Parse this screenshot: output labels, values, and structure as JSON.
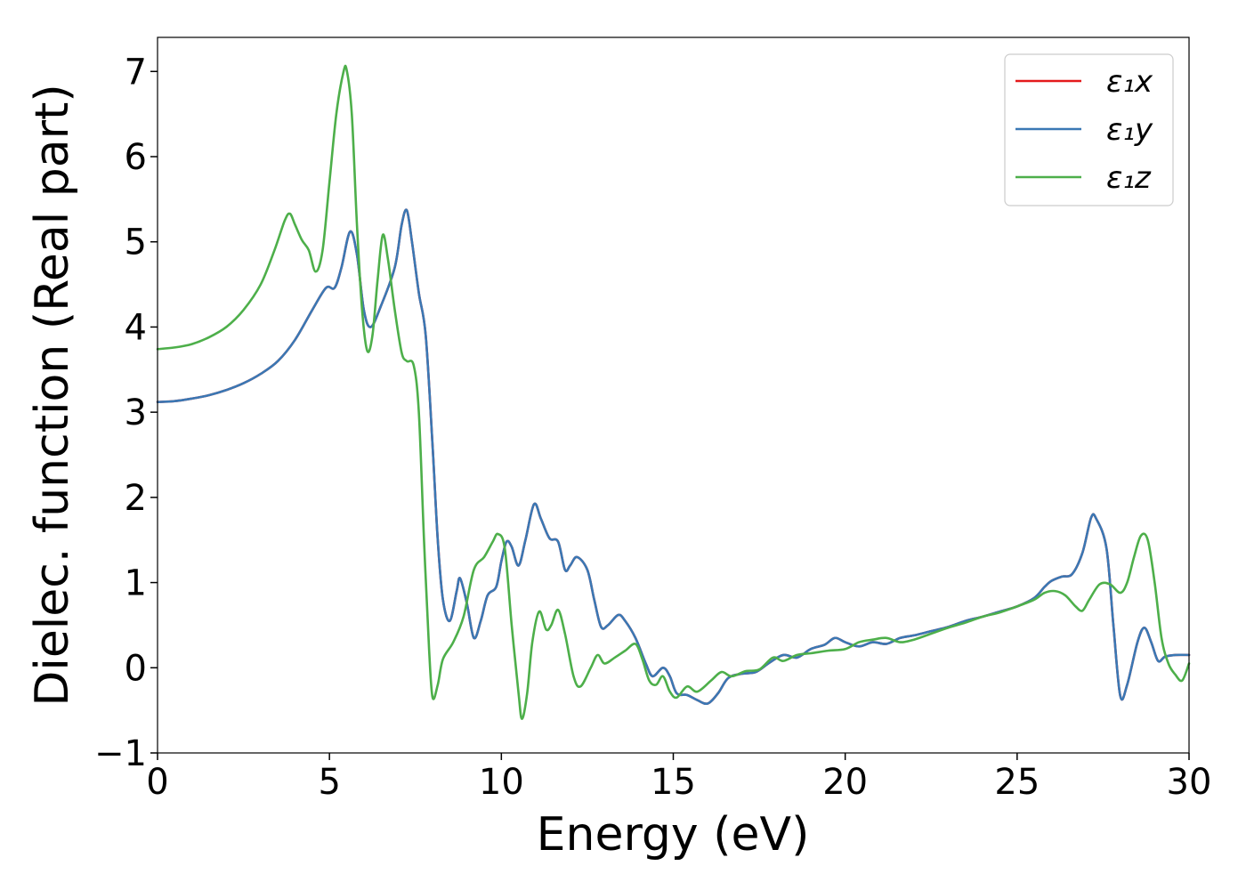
{
  "chart_data": {
    "type": "line",
    "title": "",
    "xlabel": "Energy (eV)",
    "ylabel": "Dielec. function (Real part)",
    "xlim": [
      0,
      30
    ],
    "ylim": [
      -1,
      7.4
    ],
    "xticks": [
      0,
      5,
      10,
      15,
      20,
      25,
      30
    ],
    "yticks": [
      -1,
      0,
      1,
      2,
      3,
      4,
      5,
      6,
      7
    ],
    "xtick_labels": [
      "0",
      "5",
      "10",
      "15",
      "20",
      "25",
      "30"
    ],
    "ytick_labels": [
      "−1",
      "0",
      "1",
      "2",
      "3",
      "4",
      "5",
      "6",
      "7"
    ],
    "grid": false,
    "legend_position": "top-right",
    "series": [
      {
        "name": "ε₁x",
        "color": "#e41a1c",
        "points": [
          [
            0,
            3.12
          ],
          [
            0.5,
            3.13
          ],
          [
            1,
            3.16
          ],
          [
            1.5,
            3.2
          ],
          [
            2,
            3.26
          ],
          [
            2.5,
            3.34
          ],
          [
            3,
            3.45
          ],
          [
            3.5,
            3.6
          ],
          [
            4,
            3.85
          ],
          [
            4.5,
            4.2
          ],
          [
            4.9,
            4.46
          ],
          [
            5.15,
            4.46
          ],
          [
            5.35,
            4.7
          ],
          [
            5.6,
            5.12
          ],
          [
            5.8,
            4.85
          ],
          [
            6,
            4.2
          ],
          [
            6.2,
            4.0
          ],
          [
            6.5,
            4.25
          ],
          [
            6.9,
            4.7
          ],
          [
            7.1,
            5.2
          ],
          [
            7.25,
            5.37
          ],
          [
            7.4,
            5.0
          ],
          [
            7.6,
            4.4
          ],
          [
            7.8,
            3.9
          ],
          [
            8,
            2.6
          ],
          [
            8.15,
            1.5
          ],
          [
            8.3,
            0.8
          ],
          [
            8.5,
            0.55
          ],
          [
            8.7,
            0.9
          ],
          [
            8.8,
            1.05
          ],
          [
            9,
            0.75
          ],
          [
            9.2,
            0.35
          ],
          [
            9.4,
            0.55
          ],
          [
            9.6,
            0.85
          ],
          [
            9.85,
            0.95
          ],
          [
            10,
            1.25
          ],
          [
            10.15,
            1.48
          ],
          [
            10.3,
            1.42
          ],
          [
            10.5,
            1.2
          ],
          [
            10.7,
            1.5
          ],
          [
            10.95,
            1.92
          ],
          [
            11.15,
            1.75
          ],
          [
            11.4,
            1.52
          ],
          [
            11.65,
            1.48
          ],
          [
            11.85,
            1.15
          ],
          [
            12,
            1.2
          ],
          [
            12.2,
            1.3
          ],
          [
            12.5,
            1.15
          ],
          [
            12.7,
            0.8
          ],
          [
            12.9,
            0.48
          ],
          [
            13.1,
            0.5
          ],
          [
            13.4,
            0.62
          ],
          [
            13.6,
            0.55
          ],
          [
            13.9,
            0.35
          ],
          [
            14.2,
            0.05
          ],
          [
            14.4,
            -0.1
          ],
          [
            14.7,
            0.0
          ],
          [
            14.9,
            -0.1
          ],
          [
            15.1,
            -0.3
          ],
          [
            15.4,
            -0.32
          ],
          [
            15.7,
            -0.38
          ],
          [
            16,
            -0.42
          ],
          [
            16.3,
            -0.3
          ],
          [
            16.6,
            -0.12
          ],
          [
            17,
            -0.07
          ],
          [
            17.4,
            -0.05
          ],
          [
            17.8,
            0.06
          ],
          [
            18.2,
            0.15
          ],
          [
            18.6,
            0.12
          ],
          [
            19,
            0.22
          ],
          [
            19.4,
            0.27
          ],
          [
            19.7,
            0.35
          ],
          [
            20,
            0.3
          ],
          [
            20.4,
            0.25
          ],
          [
            20.8,
            0.3
          ],
          [
            21.2,
            0.28
          ],
          [
            21.6,
            0.35
          ],
          [
            22,
            0.38
          ],
          [
            22.5,
            0.43
          ],
          [
            23,
            0.48
          ],
          [
            23.5,
            0.55
          ],
          [
            24,
            0.6
          ],
          [
            24.5,
            0.66
          ],
          [
            25,
            0.72
          ],
          [
            25.5,
            0.82
          ],
          [
            25.8,
            0.95
          ],
          [
            26,
            1.02
          ],
          [
            26.3,
            1.07
          ],
          [
            26.6,
            1.1
          ],
          [
            26.9,
            1.35
          ],
          [
            27.15,
            1.76
          ],
          [
            27.3,
            1.75
          ],
          [
            27.6,
            1.4
          ],
          [
            27.8,
            0.5
          ],
          [
            28,
            -0.33
          ],
          [
            28.2,
            -0.2
          ],
          [
            28.5,
            0.3
          ],
          [
            28.7,
            0.47
          ],
          [
            28.9,
            0.3
          ],
          [
            29.1,
            0.08
          ],
          [
            29.3,
            0.13
          ],
          [
            29.6,
            0.15
          ],
          [
            30,
            0.15
          ]
        ]
      },
      {
        "name": "ε₁y",
        "color": "#3a78b4",
        "points": [
          [
            0,
            3.12
          ],
          [
            0.5,
            3.13
          ],
          [
            1,
            3.16
          ],
          [
            1.5,
            3.2
          ],
          [
            2,
            3.26
          ],
          [
            2.5,
            3.34
          ],
          [
            3,
            3.45
          ],
          [
            3.5,
            3.6
          ],
          [
            4,
            3.85
          ],
          [
            4.5,
            4.2
          ],
          [
            4.9,
            4.46
          ],
          [
            5.15,
            4.46
          ],
          [
            5.35,
            4.7
          ],
          [
            5.6,
            5.12
          ],
          [
            5.8,
            4.85
          ],
          [
            6,
            4.2
          ],
          [
            6.2,
            4.0
          ],
          [
            6.5,
            4.25
          ],
          [
            6.9,
            4.7
          ],
          [
            7.1,
            5.2
          ],
          [
            7.25,
            5.37
          ],
          [
            7.4,
            5.0
          ],
          [
            7.6,
            4.4
          ],
          [
            7.8,
            3.9
          ],
          [
            8,
            2.6
          ],
          [
            8.15,
            1.5
          ],
          [
            8.3,
            0.8
          ],
          [
            8.5,
            0.55
          ],
          [
            8.7,
            0.9
          ],
          [
            8.8,
            1.05
          ],
          [
            9,
            0.75
          ],
          [
            9.2,
            0.35
          ],
          [
            9.4,
            0.55
          ],
          [
            9.6,
            0.85
          ],
          [
            9.85,
            0.95
          ],
          [
            10,
            1.25
          ],
          [
            10.15,
            1.48
          ],
          [
            10.3,
            1.42
          ],
          [
            10.5,
            1.2
          ],
          [
            10.7,
            1.5
          ],
          [
            10.95,
            1.92
          ],
          [
            11.15,
            1.75
          ],
          [
            11.4,
            1.52
          ],
          [
            11.65,
            1.48
          ],
          [
            11.85,
            1.15
          ],
          [
            12,
            1.2
          ],
          [
            12.2,
            1.3
          ],
          [
            12.5,
            1.15
          ],
          [
            12.7,
            0.8
          ],
          [
            12.9,
            0.48
          ],
          [
            13.1,
            0.5
          ],
          [
            13.4,
            0.62
          ],
          [
            13.6,
            0.55
          ],
          [
            13.9,
            0.35
          ],
          [
            14.2,
            0.05
          ],
          [
            14.4,
            -0.1
          ],
          [
            14.7,
            0.0
          ],
          [
            14.9,
            -0.1
          ],
          [
            15.1,
            -0.3
          ],
          [
            15.4,
            -0.32
          ],
          [
            15.7,
            -0.38
          ],
          [
            16,
            -0.42
          ],
          [
            16.3,
            -0.3
          ],
          [
            16.6,
            -0.12
          ],
          [
            17,
            -0.07
          ],
          [
            17.4,
            -0.05
          ],
          [
            17.8,
            0.06
          ],
          [
            18.2,
            0.15
          ],
          [
            18.6,
            0.12
          ],
          [
            19,
            0.22
          ],
          [
            19.4,
            0.27
          ],
          [
            19.7,
            0.35
          ],
          [
            20,
            0.3
          ],
          [
            20.4,
            0.25
          ],
          [
            20.8,
            0.3
          ],
          [
            21.2,
            0.28
          ],
          [
            21.6,
            0.35
          ],
          [
            22,
            0.38
          ],
          [
            22.5,
            0.43
          ],
          [
            23,
            0.48
          ],
          [
            23.5,
            0.55
          ],
          [
            24,
            0.6
          ],
          [
            24.5,
            0.66
          ],
          [
            25,
            0.72
          ],
          [
            25.5,
            0.82
          ],
          [
            25.8,
            0.95
          ],
          [
            26,
            1.02
          ],
          [
            26.3,
            1.07
          ],
          [
            26.6,
            1.1
          ],
          [
            26.9,
            1.35
          ],
          [
            27.15,
            1.76
          ],
          [
            27.3,
            1.75
          ],
          [
            27.6,
            1.4
          ],
          [
            27.8,
            0.5
          ],
          [
            28,
            -0.33
          ],
          [
            28.2,
            -0.2
          ],
          [
            28.5,
            0.3
          ],
          [
            28.7,
            0.47
          ],
          [
            28.9,
            0.3
          ],
          [
            29.1,
            0.08
          ],
          [
            29.3,
            0.13
          ],
          [
            29.6,
            0.15
          ],
          [
            30,
            0.15
          ]
        ]
      },
      {
        "name": "ε₁z",
        "color": "#4daf4a",
        "points": [
          [
            0,
            3.74
          ],
          [
            0.5,
            3.76
          ],
          [
            1,
            3.8
          ],
          [
            1.5,
            3.88
          ],
          [
            2,
            4.0
          ],
          [
            2.5,
            4.2
          ],
          [
            3,
            4.5
          ],
          [
            3.4,
            4.9
          ],
          [
            3.7,
            5.25
          ],
          [
            3.85,
            5.33
          ],
          [
            4,
            5.2
          ],
          [
            4.2,
            5.02
          ],
          [
            4.4,
            4.9
          ],
          [
            4.6,
            4.65
          ],
          [
            4.8,
            4.9
          ],
          [
            5,
            5.7
          ],
          [
            5.2,
            6.5
          ],
          [
            5.4,
            6.98
          ],
          [
            5.5,
            7.02
          ],
          [
            5.65,
            6.5
          ],
          [
            5.8,
            5.2
          ],
          [
            5.95,
            4.2
          ],
          [
            6.1,
            3.72
          ],
          [
            6.25,
            3.9
          ],
          [
            6.4,
            4.55
          ],
          [
            6.55,
            5.08
          ],
          [
            6.7,
            4.8
          ],
          [
            6.9,
            4.2
          ],
          [
            7.1,
            3.7
          ],
          [
            7.25,
            3.6
          ],
          [
            7.45,
            3.55
          ],
          [
            7.6,
            3.0
          ],
          [
            7.75,
            1.5
          ],
          [
            7.9,
            0.2
          ],
          [
            8,
            -0.35
          ],
          [
            8.15,
            -0.2
          ],
          [
            8.3,
            0.1
          ],
          [
            8.6,
            0.3
          ],
          [
            8.9,
            0.6
          ],
          [
            9.2,
            1.15
          ],
          [
            9.5,
            1.3
          ],
          [
            9.75,
            1.48
          ],
          [
            9.9,
            1.57
          ],
          [
            10.1,
            1.4
          ],
          [
            10.3,
            0.5
          ],
          [
            10.5,
            -0.3
          ],
          [
            10.6,
            -0.6
          ],
          [
            10.75,
            -0.3
          ],
          [
            10.9,
            0.3
          ],
          [
            11.1,
            0.66
          ],
          [
            11.3,
            0.45
          ],
          [
            11.45,
            0.5
          ],
          [
            11.65,
            0.68
          ],
          [
            11.85,
            0.4
          ],
          [
            12.1,
            -0.1
          ],
          [
            12.3,
            -0.22
          ],
          [
            12.6,
            0.0
          ],
          [
            12.8,
            0.15
          ],
          [
            13,
            0.05
          ],
          [
            13.3,
            0.12
          ],
          [
            13.6,
            0.2
          ],
          [
            13.9,
            0.28
          ],
          [
            14.1,
            0.1
          ],
          [
            14.3,
            -0.15
          ],
          [
            14.5,
            -0.2
          ],
          [
            14.7,
            -0.1
          ],
          [
            14.9,
            -0.28
          ],
          [
            15.1,
            -0.35
          ],
          [
            15.4,
            -0.22
          ],
          [
            15.7,
            -0.28
          ],
          [
            16.1,
            -0.15
          ],
          [
            16.4,
            -0.05
          ],
          [
            16.7,
            -0.1
          ],
          [
            17.1,
            -0.04
          ],
          [
            17.5,
            -0.02
          ],
          [
            17.9,
            0.12
          ],
          [
            18.2,
            0.08
          ],
          [
            18.6,
            0.15
          ],
          [
            19,
            0.17
          ],
          [
            19.5,
            0.2
          ],
          [
            20,
            0.22
          ],
          [
            20.4,
            0.3
          ],
          [
            20.8,
            0.33
          ],
          [
            21.2,
            0.35
          ],
          [
            21.6,
            0.3
          ],
          [
            22,
            0.33
          ],
          [
            22.5,
            0.4
          ],
          [
            23,
            0.47
          ],
          [
            23.5,
            0.53
          ],
          [
            24,
            0.6
          ],
          [
            24.5,
            0.65
          ],
          [
            25,
            0.72
          ],
          [
            25.5,
            0.8
          ],
          [
            25.8,
            0.88
          ],
          [
            26.1,
            0.9
          ],
          [
            26.4,
            0.85
          ],
          [
            26.7,
            0.72
          ],
          [
            26.9,
            0.67
          ],
          [
            27.1,
            0.8
          ],
          [
            27.4,
            0.98
          ],
          [
            27.7,
            0.98
          ],
          [
            28,
            0.88
          ],
          [
            28.2,
            1.0
          ],
          [
            28.4,
            1.3
          ],
          [
            28.6,
            1.55
          ],
          [
            28.8,
            1.5
          ],
          [
            29,
            1.0
          ],
          [
            29.2,
            0.35
          ],
          [
            29.4,
            0.05
          ],
          [
            29.6,
            -0.08
          ],
          [
            29.8,
            -0.15
          ],
          [
            30,
            0.05
          ]
        ]
      }
    ]
  }
}
